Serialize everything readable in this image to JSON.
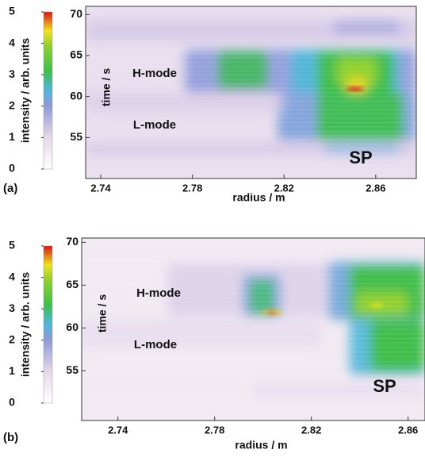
{
  "chart_data": [
    {
      "type": "heatmap",
      "label": "(a)",
      "x_label": "radius / m",
      "y_label": "time / s",
      "xlim": [
        2.7334,
        2.8777
      ],
      "ylim": [
        50,
        71
      ],
      "xticks": [
        2.74,
        2.78,
        2.82,
        2.86
      ],
      "yticks": [
        55,
        60,
        65,
        70
      ],
      "colorbar": {
        "label": "intensity / arb. units",
        "lim": [
          0,
          5
        ],
        "ticks": [
          0,
          1,
          2,
          3,
          4,
          5
        ]
      },
      "annotations": [
        {
          "text": "H-mode"
        },
        {
          "text": "L-mode"
        },
        {
          "text": "SP"
        }
      ]
    },
    {
      "type": "heatmap",
      "label": "(b)",
      "x_label": "radius / m",
      "y_label": "time / s",
      "xlim": [
        2.725,
        2.867
      ],
      "ylim": [
        49.2,
        70.5
      ],
      "xticks": [
        2.74,
        2.78,
        2.82,
        2.86
      ],
      "yticks": [
        55,
        60,
        65,
        70
      ],
      "colorbar": {
        "label": "intensity / arb. units",
        "lim": [
          0,
          5
        ],
        "ticks": [
          0,
          1,
          2,
          3,
          4,
          5
        ]
      },
      "annotations": [
        {
          "text": "H-mode"
        },
        {
          "text": "L-mode"
        },
        {
          "text": "SP"
        }
      ]
    }
  ]
}
